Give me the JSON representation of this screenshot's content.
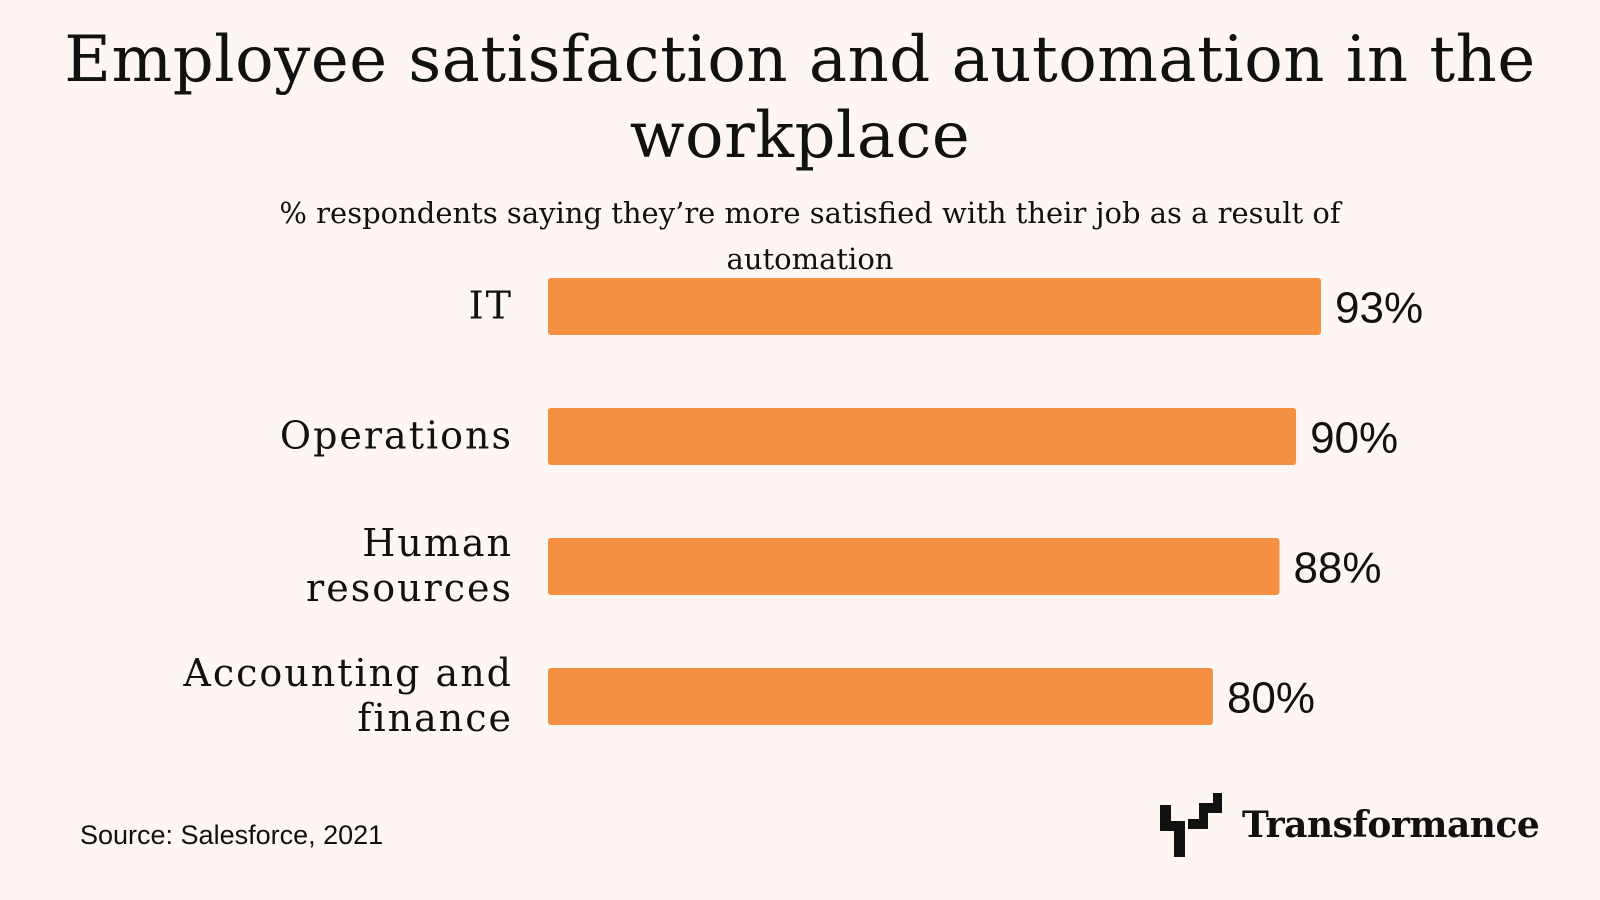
{
  "chart_data": {
    "type": "bar",
    "orientation": "horizontal",
    "title": "Employee satisfaction and automation in the workplace",
    "subtitle": "% respondents saying they’re more satisfied with their job as a result of automation",
    "categories": [
      [
        "IT"
      ],
      [
        "Operations"
      ],
      [
        "Human",
        "resources"
      ],
      [
        "Accounting and",
        "finance"
      ]
    ],
    "values": [
      93,
      90,
      88,
      80
    ],
    "value_labels": [
      "93%",
      "90%",
      "88%",
      "80%"
    ],
    "xlim": [
      0,
      100
    ],
    "grid": false,
    "bar_color": "#f58f42"
  },
  "source": "Source: Salesforce, 2021",
  "brand": {
    "name": "Transformance",
    "icon": "transformance-logo-icon"
  }
}
